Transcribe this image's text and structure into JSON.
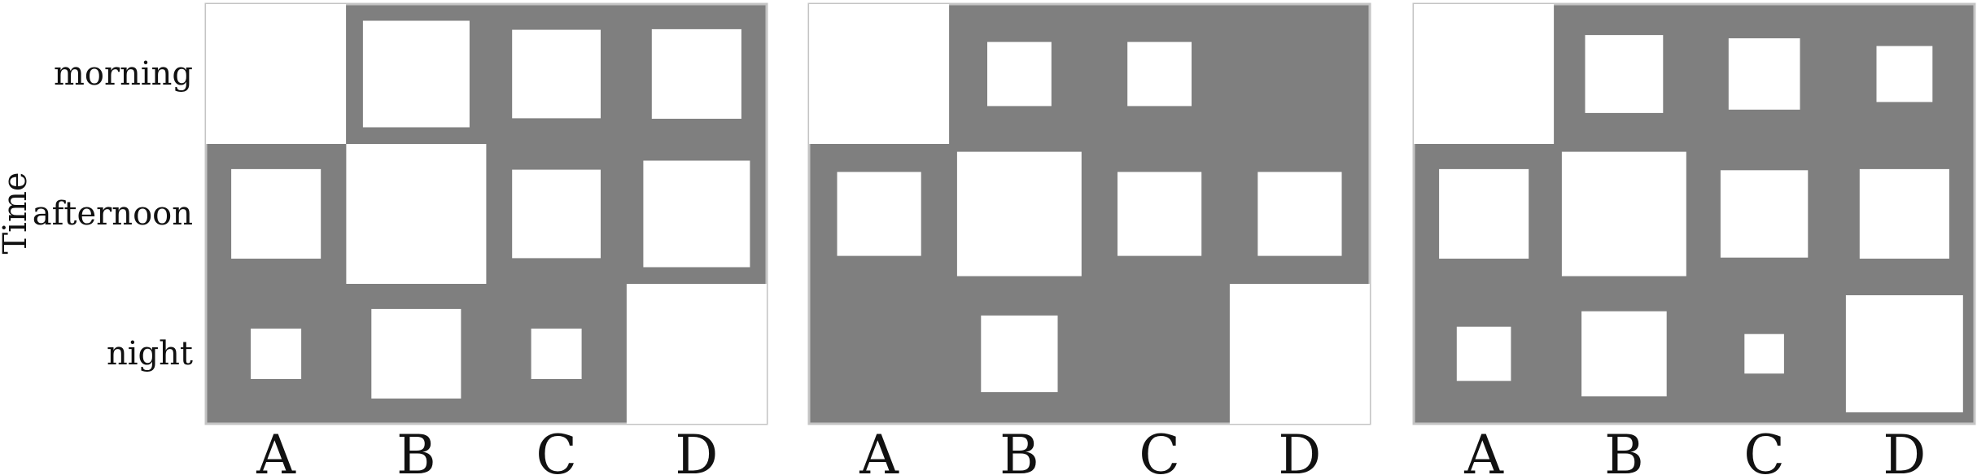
{
  "chart_data": {
    "type": "heatmap",
    "subtype": "hinton",
    "ylabel": "Time",
    "xlabel": "",
    "title": "",
    "x_categories": [
      "A",
      "B",
      "C",
      "D"
    ],
    "y_categories": [
      "morning",
      "afternoon",
      "night"
    ],
    "colors": {
      "background": "#7f7f7f",
      "cells": "#ffffff",
      "border": "#c4c4c4"
    },
    "panels": [
      {
        "values": [
          [
            1.0,
            0.58,
            0.4,
            0.41
          ],
          [
            0.41,
            1.0,
            0.4,
            0.58
          ],
          [
            0.13,
            0.41,
            0.13,
            1.0
          ]
        ]
      },
      {
        "values": [
          [
            1.0,
            0.21,
            0.21,
            0.0
          ],
          [
            0.36,
            0.79,
            0.36,
            0.36
          ],
          [
            0.0,
            0.3,
            0.0,
            1.0
          ]
        ]
      },
      {
        "values": [
          [
            1.0,
            0.31,
            0.26,
            0.16
          ],
          [
            0.41,
            0.79,
            0.39,
            0.41
          ],
          [
            0.15,
            0.37,
            0.08,
            0.7
          ]
        ]
      }
    ]
  }
}
